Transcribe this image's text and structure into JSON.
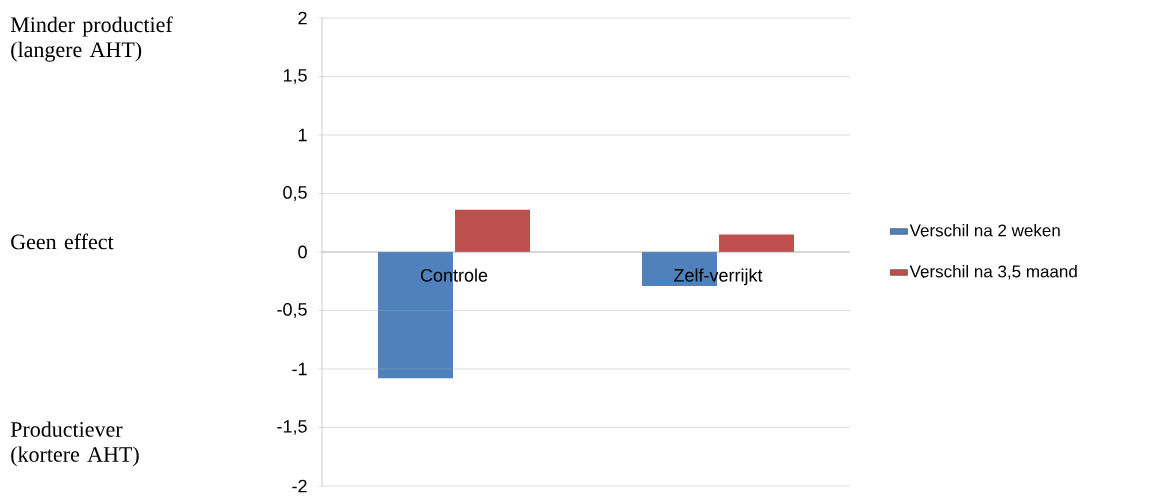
{
  "chart_data": {
    "type": "bar",
    "categories": [
      "Controle",
      "Zelf-verrijkt"
    ],
    "series": [
      {
        "name": "Verschil na 2 weken",
        "color": "#4f81bd",
        "values": [
          -1.08,
          -0.29
        ]
      },
      {
        "name": "Verschil na 3,5 maand",
        "color": "#c0504d",
        "values": [
          0.36,
          0.15
        ]
      }
    ],
    "ylim": [
      -2,
      2
    ],
    "yticks": [
      {
        "value": -2,
        "label": "-2"
      },
      {
        "value": -1.5,
        "label": "-1,5"
      },
      {
        "value": -1,
        "label": "-1"
      },
      {
        "value": -0.5,
        "label": "-0,5"
      },
      {
        "value": 0,
        "label": "0"
      },
      {
        "value": 0.5,
        "label": "0,5"
      },
      {
        "value": 1,
        "label": "1"
      },
      {
        "value": 1.5,
        "label": "1,5"
      },
      {
        "value": 2,
        "label": "2"
      }
    ],
    "grid": "y",
    "legend": "right",
    "annotations": [
      "Minder productief (langere AHT)",
      "Geen effect",
      "Productiever (kortere AHT)"
    ]
  }
}
